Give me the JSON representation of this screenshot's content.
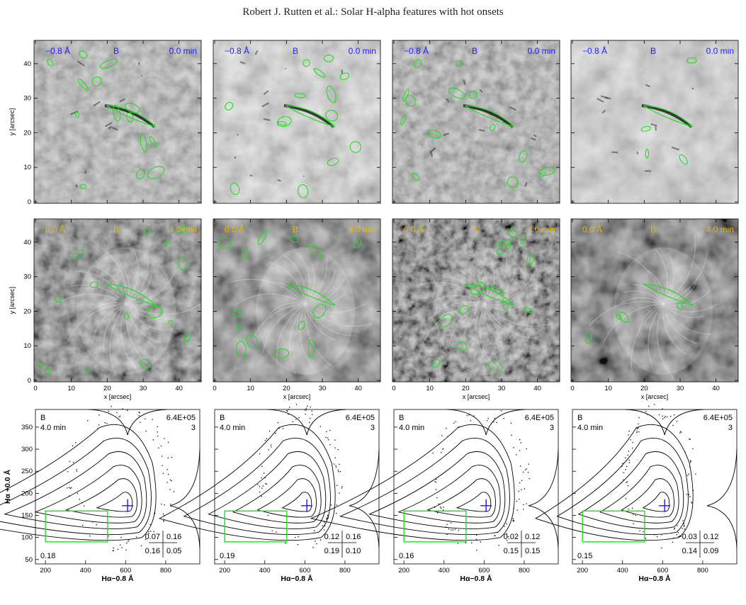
{
  "header": {
    "running_head": "Robert J. Rutten et al.: Solar H-alpha features with hot onsets"
  },
  "image_rows": [
    {
      "wavelength": "−0.8 Å",
      "region": "B",
      "time": "0.0 min",
      "label_color": "#2020ff"
    },
    {
      "wavelength": "0.0 Å",
      "region": "B",
      "time": "4.0 min",
      "label_color": "#e8b800"
    }
  ],
  "image_axes": {
    "ylabel": "y  [arcsec]",
    "xlabel": "x  [arcsec]",
    "y_ticks": [
      "0",
      "10",
      "20",
      "30",
      "40"
    ],
    "x_ticks": [
      "0",
      "10",
      "20",
      "30",
      "40"
    ]
  },
  "scatter_axes": {
    "ylabel": "Hα +0.0 Å",
    "xlabel": "Hα−0.8 Å",
    "y_ticks": [
      "50",
      "100",
      "150",
      "200",
      "250",
      "300",
      "350"
    ],
    "x_ticks": [
      "200",
      "400",
      "600",
      "800"
    ]
  },
  "scatter_panels": [
    {
      "region": "B",
      "time": "4.0 min",
      "count": "6.4E+05",
      "level": "3",
      "bottom_left": "0.18",
      "corr": [
        "0.07",
        "0.16",
        "0.16",
        "0.05"
      ]
    },
    {
      "region": "B",
      "time": "4.0 min",
      "count": "6.4E+05",
      "level": "3",
      "bottom_left": "0.19",
      "corr": [
        "0.12",
        "0.16",
        "0.19",
        "0.10"
      ]
    },
    {
      "region": "B",
      "time": "4.0 min",
      "count": "6.4E+05",
      "level": "3",
      "bottom_left": "0.16",
      "corr": [
        "0.02",
        "0.12",
        "0.15",
        "0.15"
      ]
    },
    {
      "region": "B",
      "time": "4.0 min",
      "count": "6.4E+05",
      "level": "3",
      "bottom_left": "0.15",
      "corr": [
        "−0.03",
        "0.12",
        "0.14",
        "0.09"
      ]
    }
  ],
  "colors": {
    "contour_green": "#22dd22",
    "cross_blue": "#1515ff",
    "box_green": "#22dd22"
  }
}
